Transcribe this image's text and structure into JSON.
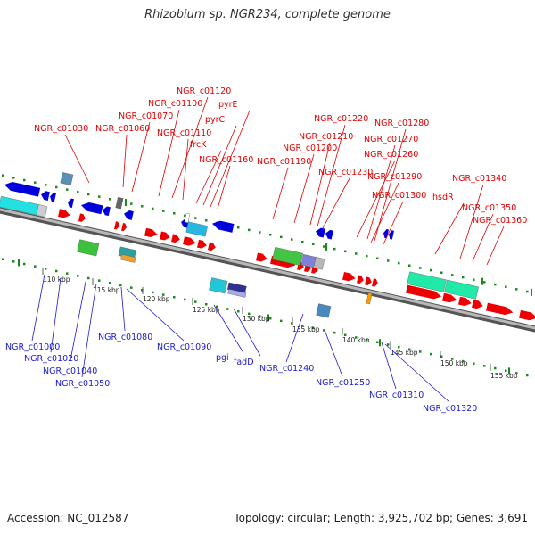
{
  "title": "Rhizobium sp. NGR234, complete genome",
  "footer": {
    "accession": "Accession: NC_012587",
    "summary": "Topology: circular; Length: 3,925,702 bp; Genes: 3,691"
  },
  "colors": {
    "forward_gene": "#ee0000",
    "reverse_gene": "#0000dd",
    "top_label": "#e00000",
    "bottom_label": "#1a1ad0",
    "backbone": "#888888",
    "dots": "#1a8a1a"
  },
  "ticks": [
    "110 kbp",
    "115 kbp",
    "120 kbp",
    "125 kbp",
    "130 kbp",
    "135 kbp",
    "140 kbp",
    "145 kbp",
    "150 kbp",
    "155 kbp"
  ],
  "top_labels": [
    "NGR_c01030",
    "NGR_c01060",
    "NGR_c01070",
    "NGR_c01100",
    "NGR_c01120",
    "NGR_c01110",
    "frcK",
    "pyrC",
    "pyrE",
    "NGR_c01160",
    "NGR_c01190",
    "NGR_c01200",
    "NGR_c01210",
    "NGR_c01220",
    "NGR_c01230",
    "NGR_c01260",
    "NGR_c01270",
    "NGR_c01280",
    "NGR_c01290",
    "NGR_c01300",
    "hsdR",
    "NGR_c01340",
    "NGR_c01350",
    "NGR_c01360"
  ],
  "bottom_labels": [
    "NGR_c01000",
    "NGR_c01020",
    "NGR_c01040",
    "NGR_c01050",
    "NGR_c01080",
    "NGR_c01090",
    "pgi",
    "fadD",
    "NGR_c01240",
    "NGR_c01250",
    "NGR_c01310",
    "NGR_c01320"
  ]
}
